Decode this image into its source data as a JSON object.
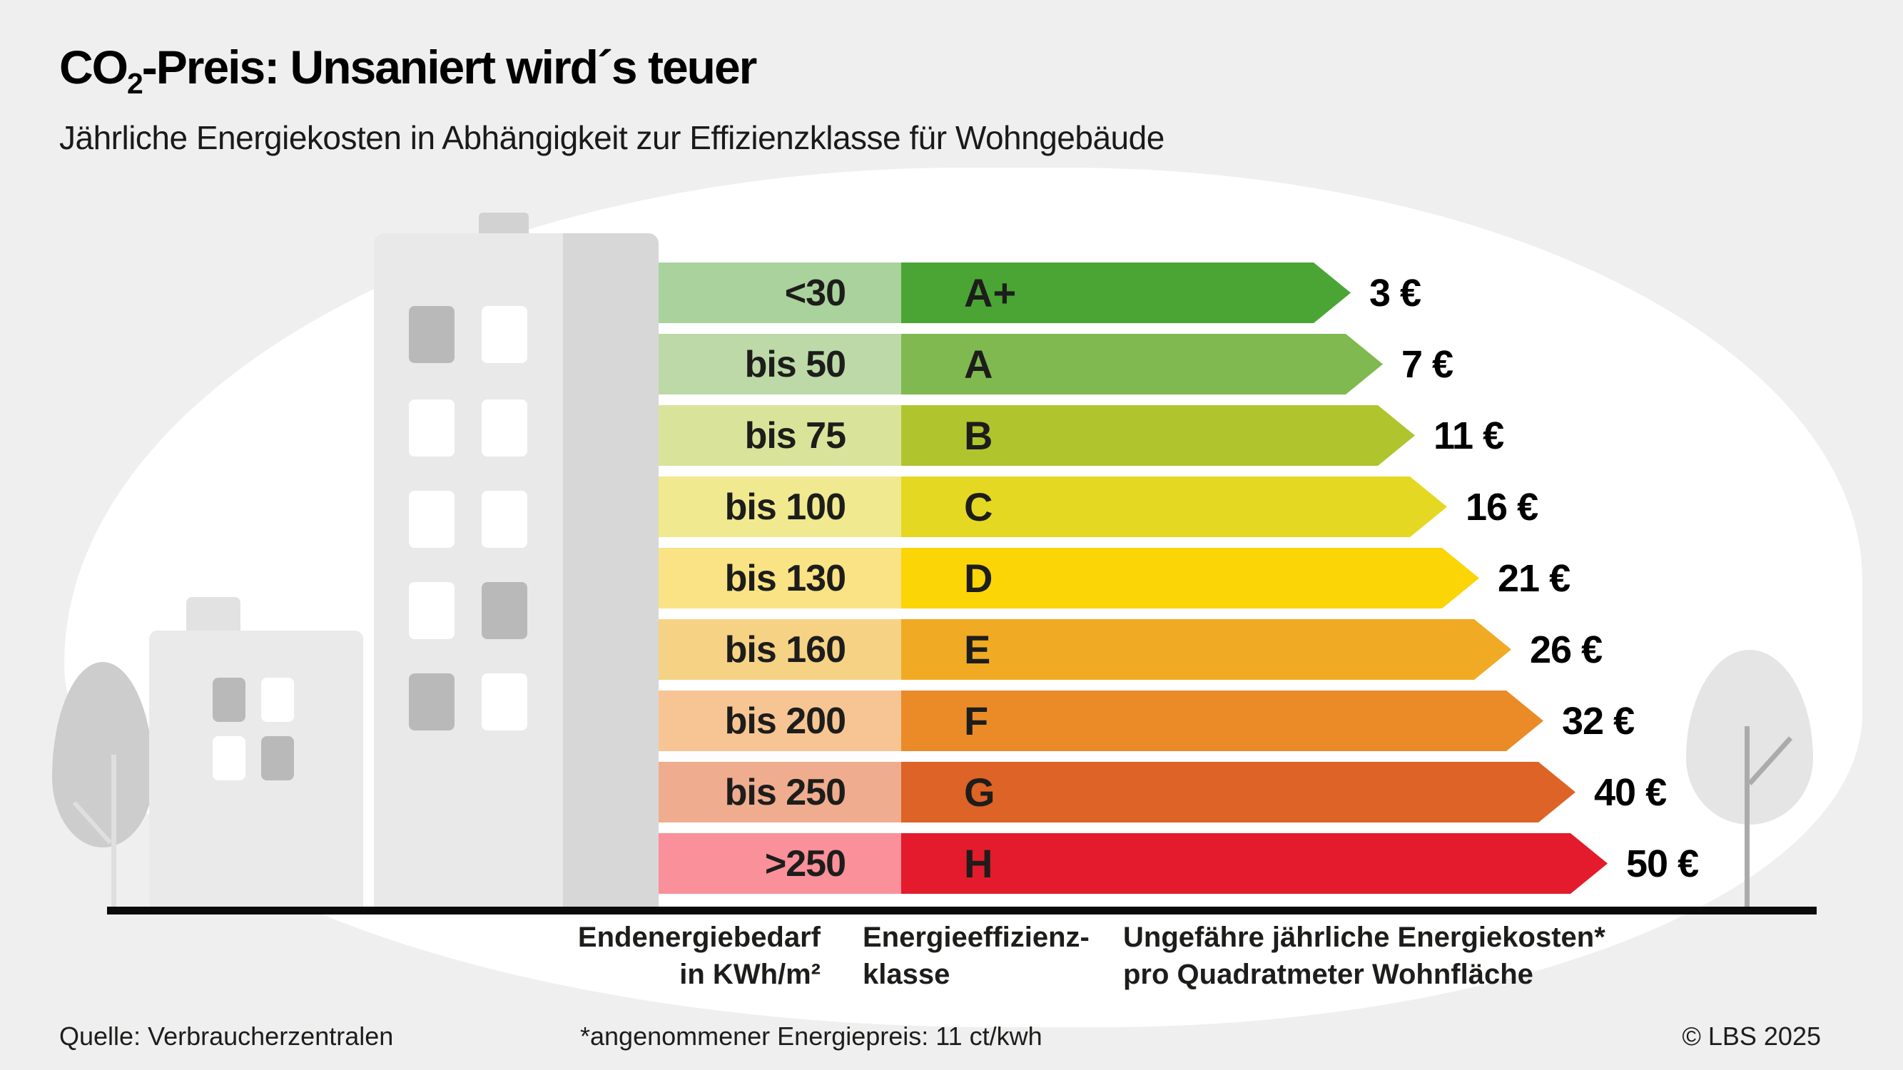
{
  "page": {
    "background_color": "#efefef",
    "title": {
      "co": "CO",
      "sub": "2",
      "rest": "-Preis: Unsaniert wird´s teuer"
    },
    "subtitle": "Jährliche Energiekosten in Abhängigkeit zur Effizienzklasse für Wohngebäude"
  },
  "chart_data": {
    "type": "bar",
    "orientation": "horizontal",
    "title": "CO2-Preis: Unsaniert wird´s teuer",
    "subtitle": "Jährliche Energiekosten in Abhängigkeit zur Effizienzklasse für Wohngebäude",
    "categories": [
      "A+",
      "A",
      "B",
      "C",
      "D",
      "E",
      "F",
      "G",
      "H"
    ],
    "values": [
      3,
      7,
      11,
      16,
      21,
      26,
      32,
      40,
      50
    ],
    "value_unit": "€ pro Quadratmeter Wohnfläche und Jahr",
    "demand_unit": "Endenergiebedarf in KWh/m²",
    "rows": [
      {
        "demand": "<30",
        "class": "A+",
        "cost": "3 €",
        "color": "#4aa535",
        "tint": "#a9d29c"
      },
      {
        "demand": "bis 50",
        "class": "A",
        "cost": "7 €",
        "color": "#7fb950",
        "tint": "#bcd9a7"
      },
      {
        "demand": "bis 75",
        "class": "B",
        "cost": "11 €",
        "color": "#b0c52d",
        "tint": "#d9e49a"
      },
      {
        "demand": "bis 100",
        "class": "C",
        "cost": "16 €",
        "color": "#e5d822",
        "tint": "#f0e98f"
      },
      {
        "demand": "bis 130",
        "class": "D",
        "cost": "21 €",
        "color": "#fbd506",
        "tint": "#fae384"
      },
      {
        "demand": "bis 160",
        "class": "E",
        "cost": "26 €",
        "color": "#f0aa23",
        "tint": "#f6d285"
      },
      {
        "demand": "bis 200",
        "class": "F",
        "cost": "32 €",
        "color": "#eb8b28",
        "tint": "#f7c593"
      },
      {
        "demand": "bis 250",
        "class": "G",
        "cost": "40 €",
        "color": "#dd6327",
        "tint": "#efac8f"
      },
      {
        "demand": ">250",
        "class": "H",
        "cost": "50 €",
        "color": "#e31b2c",
        "tint": "#f9909a"
      }
    ]
  },
  "headers": {
    "demand": [
      "Endenergiebedarf",
      "in KWh/m²"
    ],
    "class": [
      "Energieeffizienz-",
      "klasse"
    ],
    "cost": [
      "Ungefähre jährliche Energiekosten*",
      "pro Quadratmeter Wohnfläche"
    ]
  },
  "footer": {
    "source": "Quelle: Verbraucherzentralen",
    "note": "*angenommener Energiepreis: 11 ct/kwh",
    "copyright": "© LBS 2025"
  }
}
